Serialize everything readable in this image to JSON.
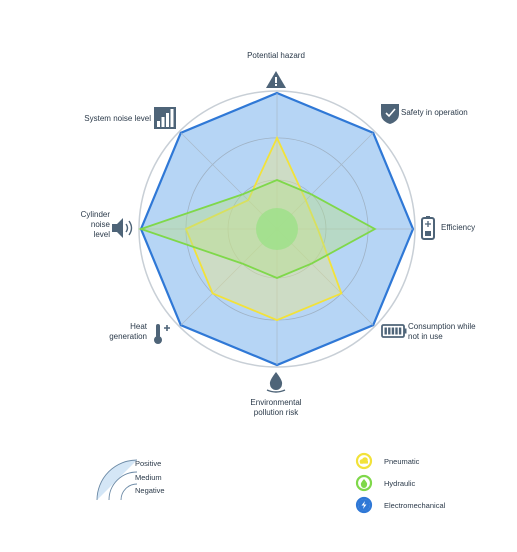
{
  "chart_data": {
    "type": "radar",
    "axes": [
      {
        "label": [
          "Potential hazard"
        ],
        "icon": "warning-triangle-icon"
      },
      {
        "label": [
          "Safety in operation"
        ],
        "icon": "shield-check-icon"
      },
      {
        "label": [
          "Efficiency"
        ],
        "icon": "battery-icon"
      },
      {
        "label": [
          "Consumption while",
          "not in use"
        ],
        "icon": "battery-full-icon"
      },
      {
        "label": [
          "Environmental",
          "pollution risk"
        ],
        "icon": "water-drop-icon"
      },
      {
        "label": [
          "Heat",
          "generation"
        ],
        "icon": "thermometer-icon"
      },
      {
        "label": [
          "Cylinder",
          "noise",
          "level"
        ],
        "icon": "speaker-icon"
      },
      {
        "label": [
          "System noise level"
        ],
        "icon": "bar-meter-icon"
      }
    ],
    "scale_levels": [
      "Negative",
      "Medium",
      "Positive"
    ],
    "series": [
      {
        "name": "Electromechanical",
        "color": "#2f78d6",
        "fill": "#a9cef3",
        "values": [
          1.0,
          1.0,
          1.0,
          1.0,
          1.0,
          1.0,
          1.0,
          1.0
        ]
      },
      {
        "name": "Pneumatic",
        "color": "#f2e23a",
        "fill": "#e8e48c",
        "values": [
          0.67,
          0.3,
          0.3,
          0.67,
          0.67,
          0.67,
          0.67,
          0.3
        ]
      },
      {
        "name": "Hydraulic",
        "color": "#7fd84a",
        "fill": "#b7de8e",
        "values": [
          0.36,
          0.36,
          0.72,
          0.36,
          0.36,
          0.36,
          1.0,
          0.36
        ]
      }
    ]
  },
  "legend": {
    "items": [
      {
        "label": "Pneumatic",
        "icon": "cloud-icon",
        "color": "#f2e23a"
      },
      {
        "label": "Hydraulic",
        "icon": "drop-icon",
        "color": "#7fd84a"
      },
      {
        "label": "Electromechanical",
        "icon": "lightning-icon",
        "color": "#2f78d6"
      }
    ]
  },
  "scale_key": {
    "labels": [
      "Positive",
      "Medium",
      "Negative"
    ]
  }
}
